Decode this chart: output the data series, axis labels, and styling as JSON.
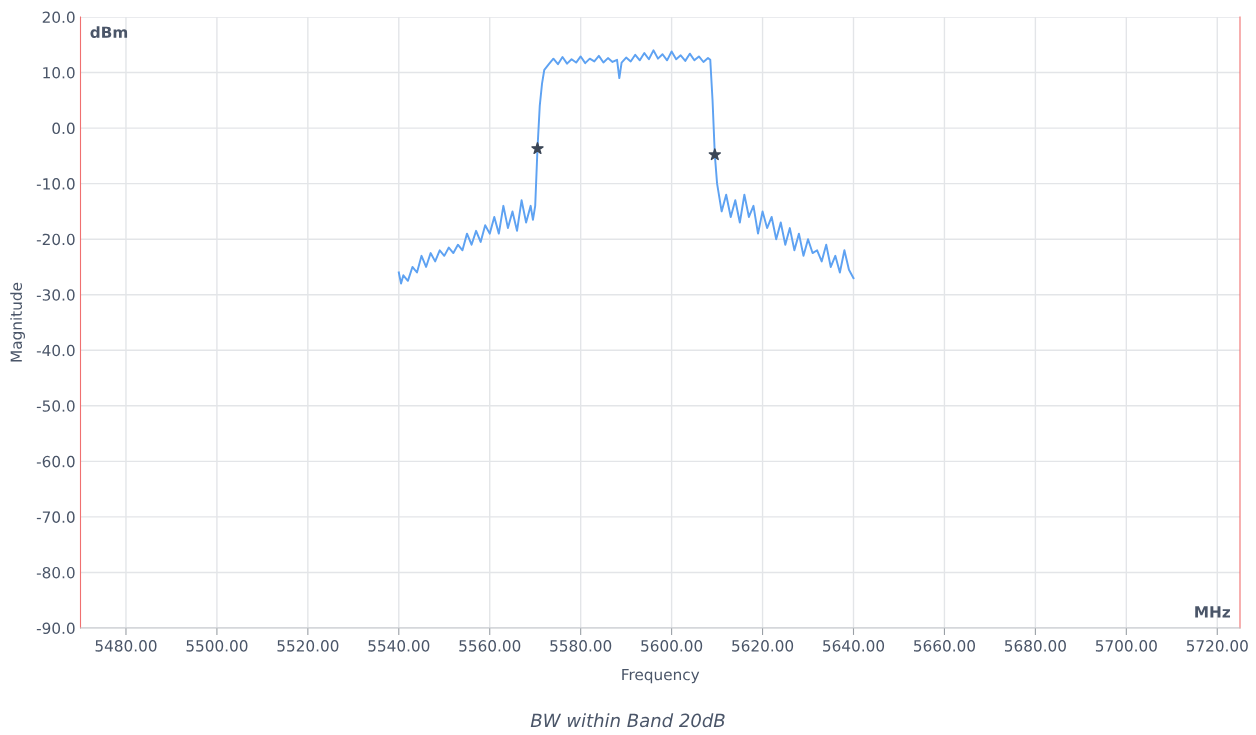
{
  "chart_data": {
    "type": "line",
    "title": "BW within Band 20dB",
    "xlabel": "Frequency",
    "ylabel": "Magnitude",
    "annotations": [
      "dBm",
      "MHz"
    ],
    "xlim": [
      5470,
      5725
    ],
    "xticks": [
      {
        "value": 5480,
        "label": "5480.00"
      },
      {
        "value": 5500,
        "label": "5500.00"
      },
      {
        "value": 5520,
        "label": "5520.00"
      },
      {
        "value": 5540,
        "label": "5540.00"
      },
      {
        "value": 5560,
        "label": "5560.00"
      },
      {
        "value": 5580,
        "label": "5580.00"
      },
      {
        "value": 5600,
        "label": "5600.00"
      },
      {
        "value": 5620,
        "label": "5620.00"
      },
      {
        "value": 5640,
        "label": "5640.00"
      },
      {
        "value": 5660,
        "label": "5660.00"
      },
      {
        "value": 5680,
        "label": "5680.00"
      },
      {
        "value": 5700,
        "label": "5700.00"
      },
      {
        "value": 5720,
        "label": "5720.00"
      }
    ],
    "ylim": [
      -90,
      20
    ],
    "yticks": [
      {
        "value": 20,
        "label": "20.0"
      },
      {
        "value": 10,
        "label": "10.0"
      },
      {
        "value": 0,
        "label": "0.0"
      },
      {
        "value": -10,
        "label": "-10.0"
      },
      {
        "value": -20,
        "label": "-20.0"
      },
      {
        "value": -30,
        "label": "-30.0"
      },
      {
        "value": -40,
        "label": "-40.0"
      },
      {
        "value": -50,
        "label": "-50.0"
      },
      {
        "value": -60,
        "label": "-60.0"
      },
      {
        "value": -70,
        "label": "-70.0"
      },
      {
        "value": -80,
        "label": "-80.0"
      },
      {
        "value": -90,
        "label": "-90.0"
      }
    ],
    "grid": true,
    "legend": false,
    "series": [
      {
        "color": "#5ea2f2",
        "marker": "none",
        "x": [
          5540,
          5540.5,
          5541,
          5542,
          5543,
          5544,
          5545,
          5546,
          5547,
          5548,
          5549,
          5550,
          5551,
          5552,
          5553,
          5554,
          5555,
          5556,
          5557,
          5558,
          5559,
          5560,
          5561,
          5562,
          5563,
          5564,
          5565,
          5566,
          5567,
          5568,
          5569,
          5569.5,
          5570,
          5570.5,
          5571,
          5571.5,
          5572,
          5573,
          5574,
          5575,
          5576,
          5577,
          5578,
          5579,
          5580,
          5581,
          5582,
          5583,
          5584,
          5585,
          5586,
          5587,
          5588,
          5588.5,
          5589,
          5590,
          5591,
          5592,
          5593,
          5594,
          5595,
          5596,
          5597,
          5598,
          5599,
          5600,
          5601,
          5602,
          5603,
          5604,
          5605,
          5606,
          5607,
          5608,
          5608.5,
          5609,
          5609.5,
          5610,
          5611,
          5612,
          5613,
          5614,
          5615,
          5616,
          5617,
          5618,
          5619,
          5620,
          5621,
          5622,
          5623,
          5624,
          5625,
          5626,
          5627,
          5628,
          5629,
          5630,
          5631,
          5632,
          5633,
          5634,
          5635,
          5636,
          5637,
          5638,
          5639,
          5640
        ],
        "values": [
          -26,
          -28,
          -26.5,
          -27.5,
          -25,
          -26,
          -23,
          -25,
          -22.5,
          -24,
          -22,
          -23,
          -21.5,
          -22.5,
          -21,
          -22,
          -19,
          -21,
          -18.5,
          -20.5,
          -17.5,
          -19,
          -16,
          -19,
          -14,
          -18,
          -15,
          -18.5,
          -13,
          -17,
          -14,
          -16.5,
          -14,
          -3.7,
          4,
          8,
          10.5,
          11.5,
          12.5,
          11.5,
          12.8,
          11.6,
          12.4,
          11.8,
          12.9,
          11.7,
          12.5,
          12,
          13,
          11.8,
          12.6,
          11.9,
          12.3,
          9,
          11.8,
          12.7,
          12,
          13.2,
          12.2,
          13.5,
          12.4,
          14,
          12.5,
          13.3,
          12.2,
          13.8,
          12.4,
          13.1,
          12.1,
          13.4,
          12.2,
          12.9,
          11.9,
          12.6,
          12.3,
          5,
          -4.8,
          -10,
          -15,
          -12,
          -16,
          -13,
          -17,
          -12,
          -16,
          -14,
          -19,
          -15,
          -18,
          -16,
          -20,
          -17,
          -21,
          -18,
          -22,
          -19,
          -23,
          -20,
          -22.5,
          -22,
          -24,
          -21,
          -25,
          -23,
          -26,
          -22,
          -25.5,
          -27
        ],
        "line_style": "solid"
      },
      {
        "type": "scatter",
        "color": "#3c4757",
        "marker": "star",
        "x": [
          5570.5,
          5609.5
        ],
        "values": [
          -3.7,
          -4.8
        ]
      }
    ]
  }
}
